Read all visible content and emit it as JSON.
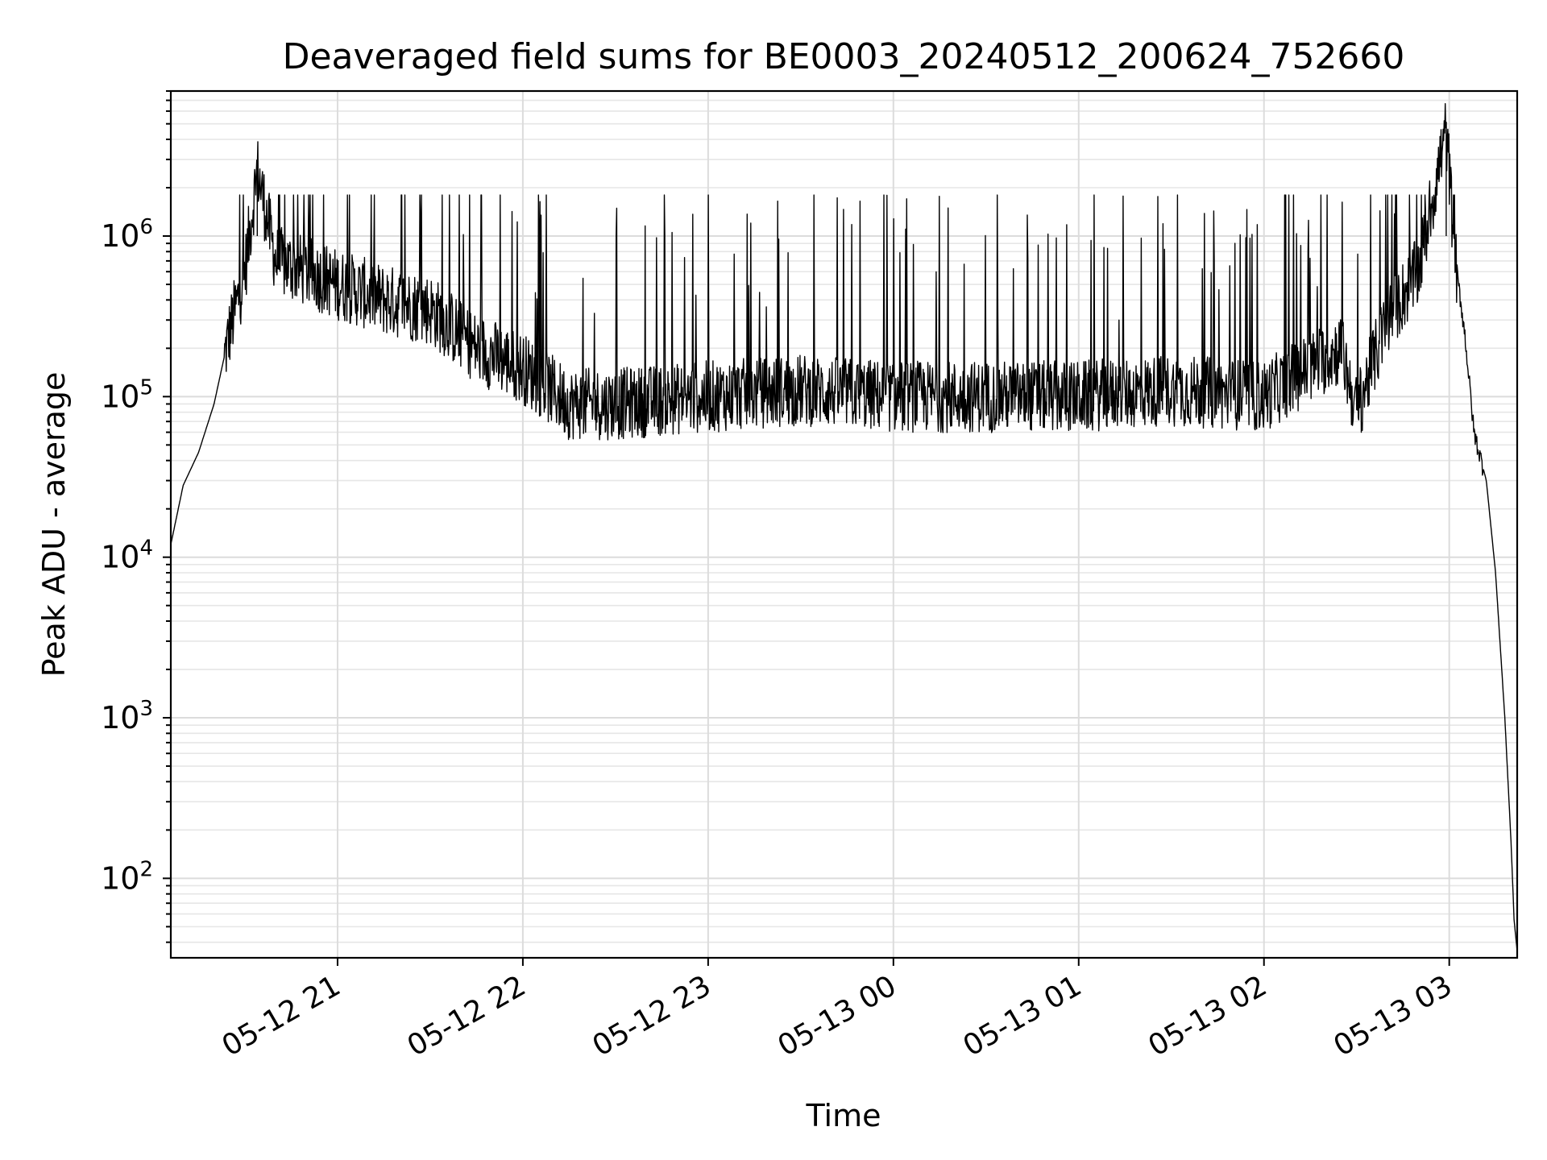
{
  "chart_data": {
    "type": "line",
    "title": "Deaveraged field sums for BE0003_20240512_200624_752660",
    "xlabel": "Time",
    "ylabel": "Peak ADU - average",
    "yscale": "log",
    "grid": true,
    "x_tick_labels": [
      "05-12 21",
      "05-12 22",
      "05-12 23",
      "05-13 00",
      "05-13 01",
      "05-13 02",
      "05-13 03"
    ],
    "y_tick_labels": [
      {
        "base": "10",
        "exp": "2",
        "value": 100
      },
      {
        "base": "10",
        "exp": "3",
        "value": 1000
      },
      {
        "base": "10",
        "exp": "4",
        "value": 10000
      },
      {
        "base": "10",
        "exp": "5",
        "value": 100000
      },
      {
        "base": "10",
        "exp": "6",
        "value": 1000000
      }
    ],
    "ylim": [
      32,
      8000000
    ],
    "xlim": [
      "2024-05-12 20:06",
      "2024-05-13 03:22"
    ],
    "series": [
      {
        "color": "#000000",
        "points": [
          {
            "x": "2024-05-12 20:06",
            "y": 12000
          },
          {
            "x": "2024-05-12 20:10",
            "y": 28000
          },
          {
            "x": "2024-05-12 20:15",
            "y": 45000
          },
          {
            "x": "2024-05-12 20:20",
            "y": 90000
          },
          {
            "x": "2024-05-12 20:25",
            "y": 250000
          },
          {
            "x": "2024-05-12 20:30",
            "y": 600000
          },
          {
            "x": "2024-05-12 20:34",
            "y": 2600000
          },
          {
            "x": "2024-05-12 20:40",
            "y": 700000
          },
          {
            "x": "2024-05-12 20:50",
            "y": 600000
          },
          {
            "x": "2024-05-12 21:00",
            "y": 500000
          },
          {
            "x": "2024-05-12 21:15",
            "y": 400000
          },
          {
            "x": "2024-05-12 21:30",
            "y": 350000
          },
          {
            "x": "2024-05-12 21:45",
            "y": 200000
          },
          {
            "x": "2024-05-12 22:00",
            "y": 150000
          },
          {
            "x": "2024-05-12 22:15",
            "y": 90000
          },
          {
            "x": "2024-05-12 22:30",
            "y": 90000
          },
          {
            "x": "2024-05-12 23:00",
            "y": 100000
          },
          {
            "x": "2024-05-12 23:30",
            "y": 110000
          },
          {
            "x": "2024-05-13 00:00",
            "y": 100000
          },
          {
            "x": "2024-05-13 00:30",
            "y": 100000
          },
          {
            "x": "2024-05-13 01:00",
            "y": 100000
          },
          {
            "x": "2024-05-13 01:30",
            "y": 110000
          },
          {
            "x": "2024-05-13 02:00",
            "y": 100000
          },
          {
            "x": "2024-05-13 02:25",
            "y": 200000
          },
          {
            "x": "2024-05-13 02:30",
            "y": 80000
          },
          {
            "x": "2024-05-13 02:40",
            "y": 300000
          },
          {
            "x": "2024-05-13 02:50",
            "y": 600000
          },
          {
            "x": "2024-05-13 02:59",
            "y": 4600000
          },
          {
            "x": "2024-05-13 03:02",
            "y": 700000
          },
          {
            "x": "2024-05-13 03:05",
            "y": 250000
          },
          {
            "x": "2024-05-13 03:08",
            "y": 60000
          },
          {
            "x": "2024-05-13 03:12",
            "y": 30000
          },
          {
            "x": "2024-05-13 03:15",
            "y": 8000
          },
          {
            "x": "2024-05-13 03:18",
            "y": 1000
          },
          {
            "x": "2024-05-13 03:20",
            "y": 170
          },
          {
            "x": "2024-05-13 03:21",
            "y": 55
          },
          {
            "x": "2024-05-13 03:22",
            "y": 35
          }
        ]
      }
    ]
  }
}
